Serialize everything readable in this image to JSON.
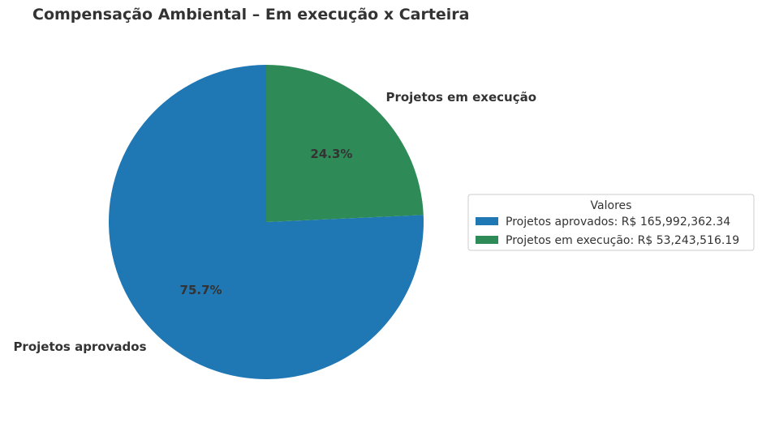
{
  "chart_data": {
    "type": "pie",
    "title": "Compensação Ambiental – Em execução x Carteira",
    "slices": [
      {
        "label": "Projetos aprovados",
        "value": 165992362.34,
        "percent_label": "75.7%",
        "legend_label": "Projetos aprovados: R$ 165,992,362.34",
        "color": "#1f77b4"
      },
      {
        "label": "Projetos em execução",
        "value": 53243516.19,
        "percent_label": "24.3%",
        "legend_label": "Projetos em execução: R$ 53,243,516.19",
        "color": "#2e8b57"
      }
    ],
    "start_angle_deg": 90,
    "direction": "counterclockwise",
    "legend": {
      "title": "Valores",
      "placement": "center-right"
    }
  }
}
